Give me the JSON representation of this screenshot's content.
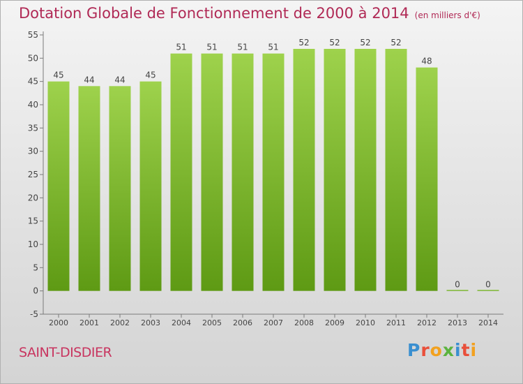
{
  "header": {
    "title": "Dotation Globale de Fonctionnement de 2000 à 2014",
    "unit": "(en milliers d'€)"
  },
  "footer": {
    "commune": "SAINT-DISDIER"
  },
  "logo": {
    "letters": [
      "P",
      "r",
      "o",
      "x",
      "i",
      "t",
      "i"
    ],
    "colors": [
      "#3a8fd0",
      "#e94f3a",
      "#f2a11f",
      "#5bb33e",
      "#3a8fd0",
      "#e94f3a",
      "#f2a11f"
    ]
  },
  "chart_data": {
    "type": "bar",
    "title": "Dotation Globale de Fonctionnement de 2000 à 2014",
    "xlabel": "",
    "ylabel": "",
    "categories": [
      "2000",
      "2001",
      "2002",
      "2003",
      "2004",
      "2005",
      "2006",
      "2007",
      "2008",
      "2009",
      "2010",
      "2011",
      "2012",
      "2013",
      "2014"
    ],
    "values": [
      45,
      44,
      44,
      45,
      51,
      51,
      51,
      51,
      52,
      52,
      52,
      52,
      48,
      0,
      0
    ],
    "ylim": [
      -5,
      55
    ],
    "yticks": [
      -5,
      0,
      5,
      10,
      15,
      20,
      25,
      30,
      35,
      40,
      45,
      50,
      55
    ],
    "grid": false,
    "colors": {
      "bar_top": "#9ed24c",
      "bar_bottom": "#5e9a14",
      "axis": "#7a7a7a",
      "text": "#444444"
    }
  }
}
